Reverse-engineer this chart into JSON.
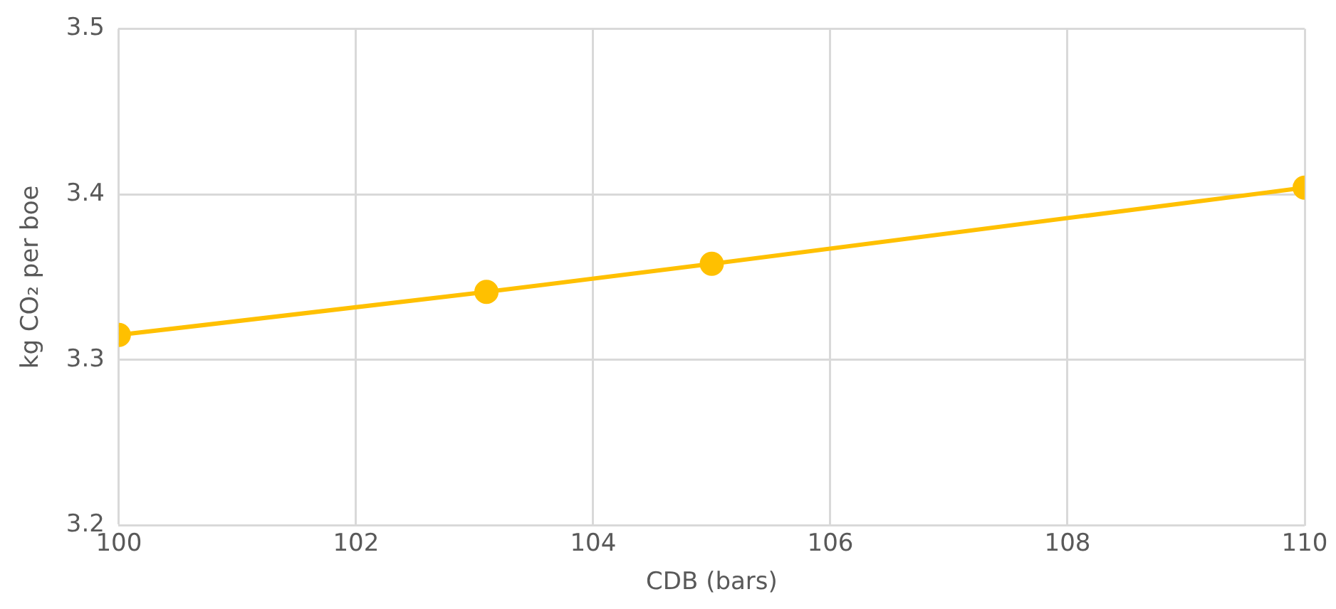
{
  "chart_data": {
    "type": "line",
    "xlabel": "CDB (bars)",
    "ylabel": "kg CO₂ per boe",
    "x": [
      100,
      103.1,
      105,
      110
    ],
    "series": [
      {
        "color": "#ffc000",
        "values": [
          3.315,
          3.341,
          3.358,
          3.404
        ]
      }
    ],
    "xlim": [
      100,
      110
    ],
    "xticks": [
      100,
      102,
      104,
      106,
      108,
      110
    ],
    "ylim": [
      3.2,
      3.5
    ],
    "yticks": [
      3.2,
      3.3,
      3.4,
      3.5
    ],
    "grid": true,
    "legend": false,
    "marker": "circle",
    "line_style": "solid"
  }
}
